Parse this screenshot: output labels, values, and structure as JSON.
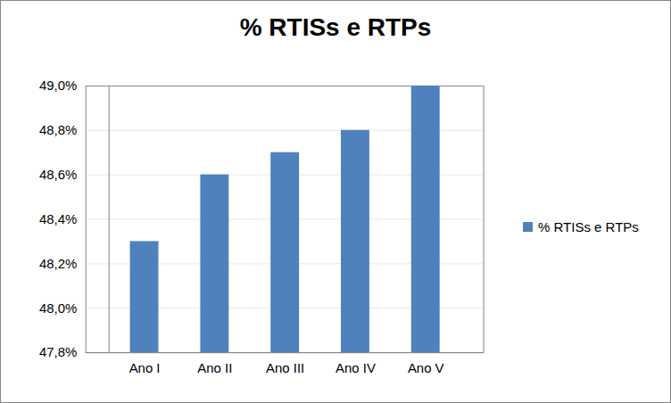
{
  "chart_data": {
    "type": "bar",
    "title": "% RTISs e RTPs",
    "categories": [
      "Ano I",
      "Ano II",
      "Ano III",
      "Ano IV",
      "Ano V"
    ],
    "series": [
      {
        "name": "% RTISs e RTPs",
        "color": "#4f81bd",
        "values": [
          48.3,
          48.6,
          48.7,
          48.8,
          49.0
        ]
      }
    ],
    "ylim": [
      47.8,
      49.0
    ],
    "yticks": [
      {
        "value": 47.8,
        "label": "47,8%"
      },
      {
        "value": 48.0,
        "label": "48,0%"
      },
      {
        "value": 48.2,
        "label": "48,2%"
      },
      {
        "value": 48.4,
        "label": "48,4%"
      },
      {
        "value": 48.6,
        "label": "48,6%"
      },
      {
        "value": 48.8,
        "label": "48,8%"
      },
      {
        "value": 49.0,
        "label": "49,0%"
      }
    ],
    "grid": true,
    "legend": "right"
  }
}
